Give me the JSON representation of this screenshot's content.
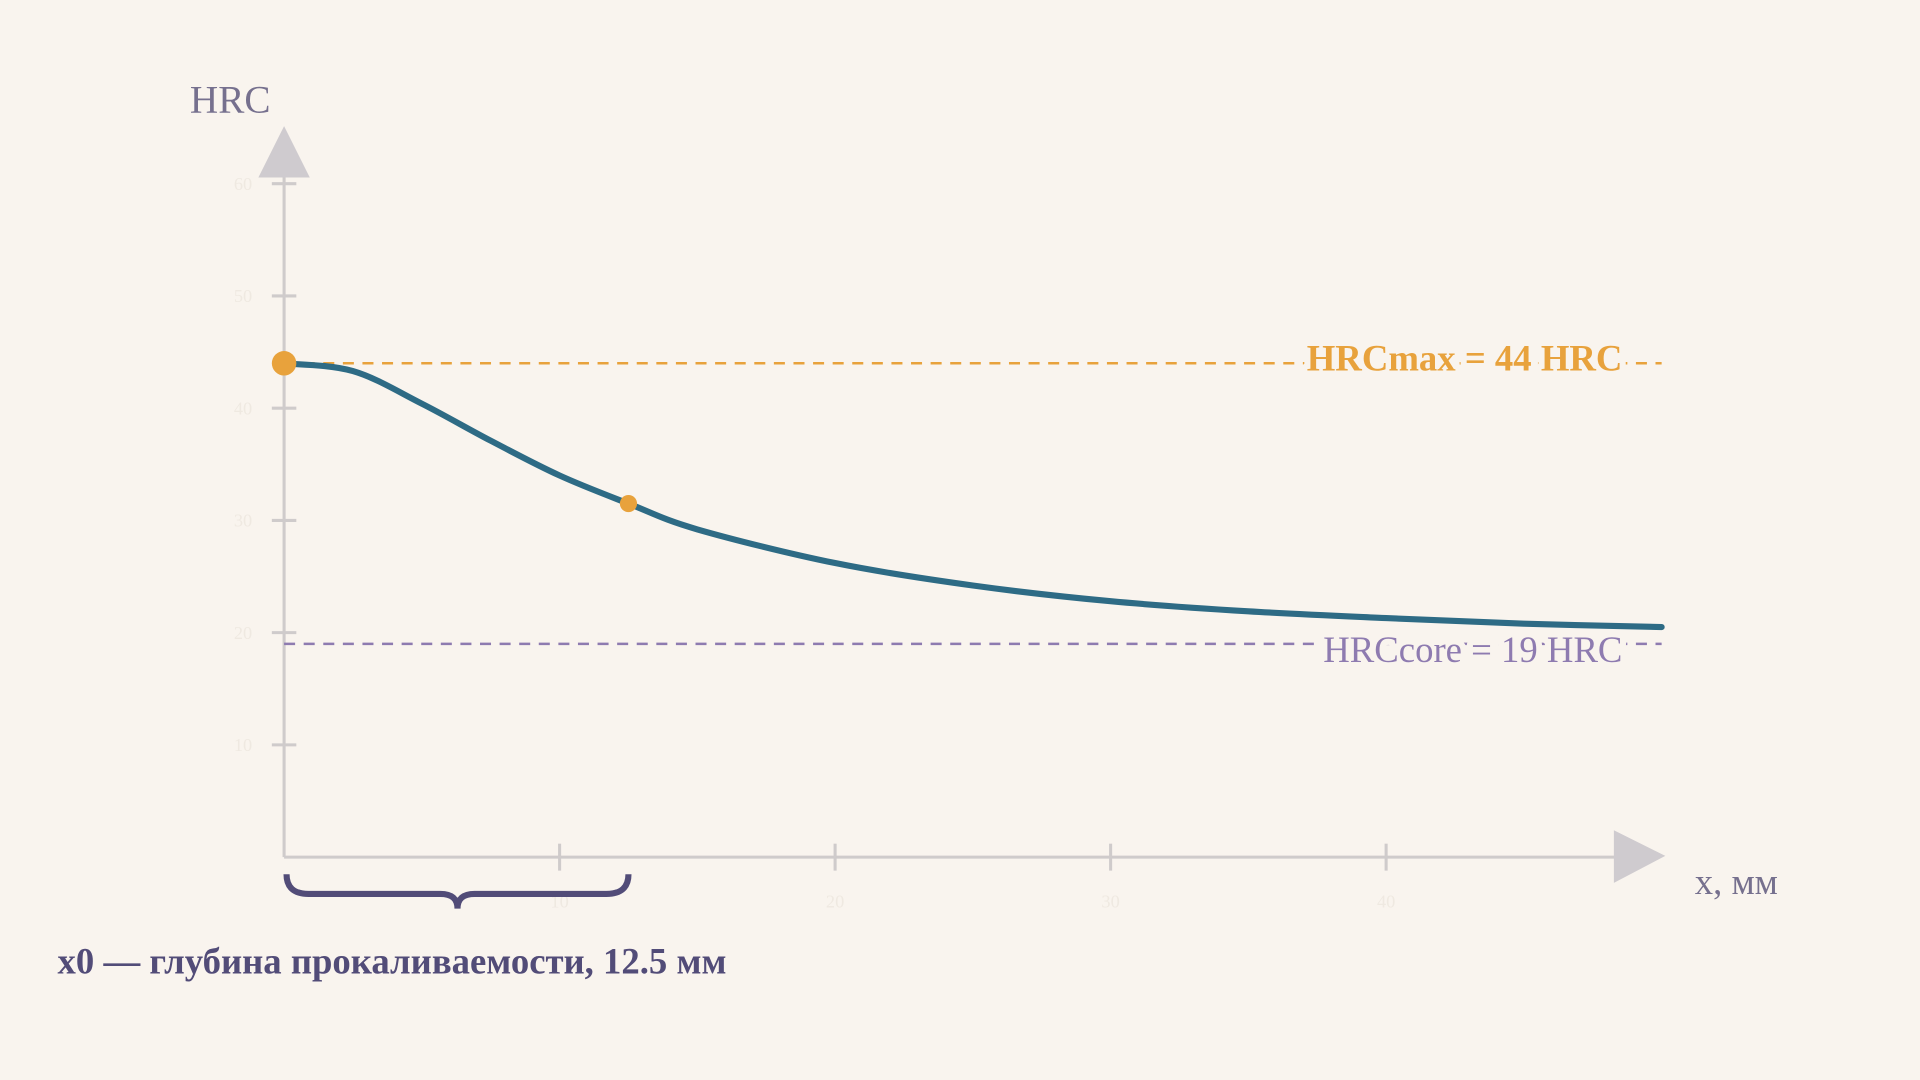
{
  "chart_data": {
    "type": "line",
    "y_label": "HRC",
    "x_label": "x, мм",
    "x": [
      0,
      2.5,
      5,
      7.5,
      10,
      12.5,
      15,
      20,
      25,
      30,
      35,
      40,
      45,
      50
    ],
    "series": [
      {
        "color": "#2e6b85",
        "values": [
          44,
          43.3,
          40.4,
          37.1,
          34.0,
          31.5,
          29.2,
          26.2,
          24.2,
          22.8,
          21.9,
          21.3,
          20.8,
          20.5
        ]
      }
    ],
    "xlim": [
      0,
      50
    ],
    "ylim": [
      0,
      60
    ],
    "xticks": [
      10,
      20,
      30,
      40
    ],
    "yticks": [
      10,
      20,
      30,
      40,
      50,
      60
    ],
    "reference_lines": [
      {
        "label": "HRCmax = 44 HRC",
        "value": 44,
        "color": "#e8a23c"
      },
      {
        "label": "HRCcore = 19 HRC",
        "value": 19,
        "color": "#8e7bb0"
      }
    ],
    "depth_marker": {
      "label": "x0 — глубина прокаливаемости, 12.5 мм",
      "value": 12.5,
      "color": "#524c78",
      "point_color": "#e8a23c"
    }
  }
}
